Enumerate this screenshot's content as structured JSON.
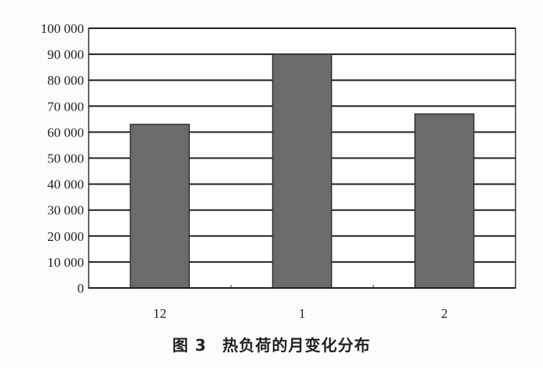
{
  "chart_data": {
    "type": "bar",
    "categories": [
      "12",
      "1",
      "2"
    ],
    "values": [
      63000,
      90000,
      67000
    ],
    "title": "",
    "xlabel": "",
    "ylabel": "",
    "ylim": [
      0,
      100000
    ],
    "yticks": [
      "0",
      "10 000",
      "20 000",
      "30 000",
      "40 000",
      "50 000",
      "60 000",
      "70 000",
      "80 000",
      "90 000",
      "100 000"
    ],
    "grid": true,
    "bar_color": "#6b6b6b"
  },
  "caption": {
    "figure": "图 3",
    "text": "热负荷的月变化分布"
  }
}
